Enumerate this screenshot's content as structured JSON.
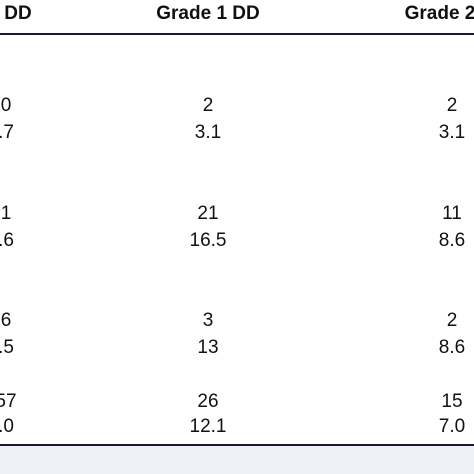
{
  "table": {
    "headers": [
      "DD",
      "Grade 1 DD",
      "Grade 2"
    ],
    "rows": [
      [
        "0",
        "2",
        "2"
      ],
      [
        ".7",
        "3.1",
        "3.1"
      ],
      [
        "1",
        "21",
        "11"
      ],
      [
        ".6",
        "16.5",
        "8.6"
      ],
      [
        "6",
        "3",
        "2"
      ],
      [
        ".5",
        "13",
        "8.6"
      ],
      [
        "57",
        "26",
        "15"
      ],
      [
        ".0",
        "12.1",
        "7.0"
      ]
    ]
  }
}
